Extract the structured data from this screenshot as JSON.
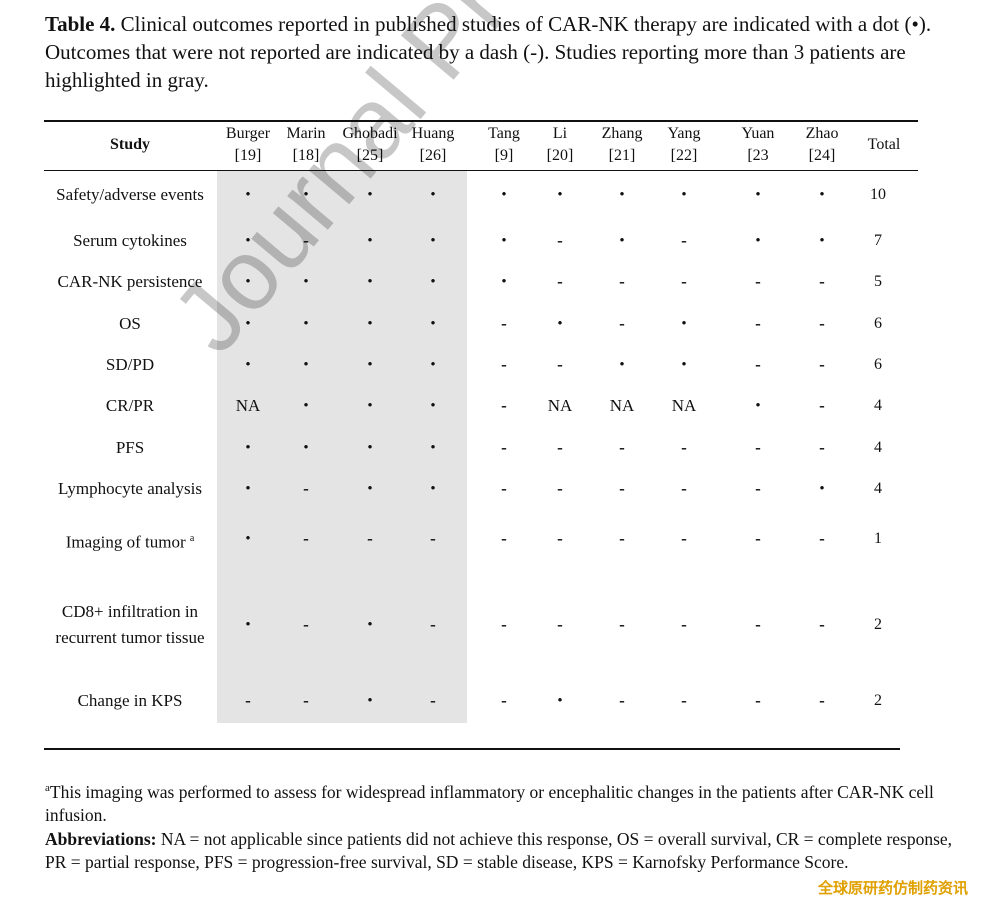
{
  "caption": {
    "label": "Table 4.",
    "text": " Clinical outcomes reported in published studies of CAR-NK therapy are indicated with a dot (•). Outcomes that were not reported are indicated by a dash (-). Studies reporting more than 3 patients are highlighted in gray."
  },
  "table": {
    "study_header": "Study",
    "total_header": "Total",
    "studies": [
      {
        "name": "Burger",
        "ref": "[19]"
      },
      {
        "name": "Marin",
        "ref": "[18]"
      },
      {
        "name": "Ghobadi",
        "ref": "[25]"
      },
      {
        "name": "Huang",
        "ref": "[26]"
      },
      {
        "name": "Tang",
        "ref": "[9]"
      },
      {
        "name": "Li",
        "ref": "[20]"
      },
      {
        "name": "Zhang",
        "ref": "[21]"
      },
      {
        "name": "Yang",
        "ref": "[22]"
      },
      {
        "name": "Yuan",
        "ref": "[23"
      },
      {
        "name": "Zhao",
        "ref": "[24]"
      }
    ],
    "rows": [
      {
        "label": "Safety/adverse events",
        "values": [
          "•",
          "•",
          "•",
          "•",
          "•",
          "•",
          "•",
          "•",
          "•",
          "•"
        ],
        "total": "10"
      },
      {
        "label": "Serum cytokines",
        "values": [
          "•",
          "-",
          "•",
          "•",
          "•",
          "-",
          "•",
          "-",
          "•",
          "•"
        ],
        "total": "7"
      },
      {
        "label": "CAR-NK persistence",
        "values": [
          "•",
          "•",
          "•",
          "•",
          "•",
          "-",
          "-",
          "-",
          "-",
          "-"
        ],
        "total": "5"
      },
      {
        "label": "OS",
        "values": [
          "•",
          "•",
          "•",
          "•",
          "-",
          "•",
          "-",
          "•",
          "-",
          "-"
        ],
        "total": "6"
      },
      {
        "label": "SD/PD",
        "values": [
          "•",
          "•",
          "•",
          "•",
          "-",
          "-",
          "•",
          "•",
          "-",
          "-"
        ],
        "total": "6"
      },
      {
        "label": "CR/PR",
        "values": [
          "NA",
          "•",
          "•",
          "•",
          "-",
          "NA",
          "NA",
          "NA",
          "•",
          "-"
        ],
        "total": "4"
      },
      {
        "label": "PFS",
        "values": [
          "•",
          "•",
          "•",
          "•",
          "-",
          "-",
          "-",
          "-",
          "-",
          "-"
        ],
        "total": "4"
      },
      {
        "label": "Lymphocyte analysis",
        "values": [
          "•",
          "-",
          "•",
          "•",
          "-",
          "-",
          "-",
          "-",
          "-",
          "•"
        ],
        "total": "4"
      },
      {
        "label": "Imaging of tumor",
        "label_sup": "a",
        "values": [
          "•",
          "-",
          "-",
          "-",
          "-",
          "-",
          "-",
          "-",
          "-",
          "-"
        ],
        "total": "1"
      },
      {
        "label": "CD8+ infiltration in recurrent tumor tissue",
        "values": [
          "•",
          "-",
          "•",
          "-",
          "-",
          "-",
          "-",
          "-",
          "-",
          "-"
        ],
        "total": "2"
      },
      {
        "label": "Change in KPS",
        "values": [
          "-",
          "-",
          "•",
          "-",
          "-",
          "•",
          "-",
          "-",
          "-",
          "-"
        ],
        "total": "2"
      }
    ]
  },
  "footnote": {
    "sup": "a",
    "text": "This imaging was performed to assess for widespread inflammatory or encephalitic changes in the patients after CAR-NK cell infusion.",
    "abbr_label": "Abbreviations:",
    "abbr_text": " NA = not applicable since patients did not achieve this response, OS = overall survival, CR = complete response, PR = partial response, PFS = progression-free survival, SD = stable disease, KPS = Karnofsky Performance Score."
  },
  "watermark": "Journal Pre-proof",
  "corner_tag": "全球原研药仿制药资讯"
}
